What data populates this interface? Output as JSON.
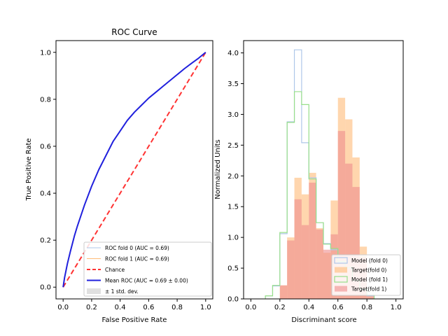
{
  "chart_data": [
    {
      "type": "line",
      "title": "ROC Curve",
      "xlabel": "False Positive Rate",
      "ylabel": "True Positive Rate",
      "xlim": [
        -0.05,
        1.05
      ],
      "ylim": [
        -0.05,
        1.05
      ],
      "xticks": [
        "0.0",
        "0.2",
        "0.4",
        "0.6",
        "0.8",
        "1.0"
      ],
      "yticks": [
        "0.0",
        "0.2",
        "0.4",
        "0.6",
        "0.8",
        "1.0"
      ],
      "grid": false,
      "legend_position": "lower-right",
      "x": [
        0,
        0.01,
        0.03,
        0.05,
        0.08,
        0.1,
        0.15,
        0.2,
        0.25,
        0.3,
        0.35,
        0.4,
        0.45,
        0.5,
        0.55,
        0.6,
        0.65,
        0.7,
        0.75,
        0.8,
        0.85,
        0.9,
        0.95,
        1.0
      ],
      "series": [
        {
          "name": "ROC fold 0 (AUC = 0.69)",
          "style": "solid",
          "color": "#aec7e8",
          "values": [
            0,
            0.04,
            0.1,
            0.15,
            0.22,
            0.26,
            0.35,
            0.43,
            0.5,
            0.56,
            0.62,
            0.665,
            0.71,
            0.745,
            0.775,
            0.805,
            0.83,
            0.855,
            0.88,
            0.905,
            0.93,
            0.953,
            0.975,
            1.0
          ]
        },
        {
          "name": "ROC fold 1 (AUC = 0.69)",
          "style": "solid",
          "color": "#ffbb78",
          "values": [
            0,
            0.04,
            0.1,
            0.15,
            0.22,
            0.26,
            0.35,
            0.43,
            0.5,
            0.56,
            0.62,
            0.665,
            0.71,
            0.745,
            0.775,
            0.805,
            0.83,
            0.855,
            0.88,
            0.905,
            0.93,
            0.953,
            0.975,
            1.0
          ]
        },
        {
          "name": "Chance",
          "style": "dashed",
          "color": "#ff3333",
          "values": [
            0,
            0.01,
            0.03,
            0.05,
            0.08,
            0.1,
            0.15,
            0.2,
            0.25,
            0.3,
            0.35,
            0.4,
            0.45,
            0.5,
            0.55,
            0.6,
            0.65,
            0.7,
            0.75,
            0.8,
            0.85,
            0.9,
            0.95,
            1.0
          ]
        },
        {
          "name": "Mean ROC (AUC = 0.69 ± 0.00)",
          "style": "solid",
          "color": "#2020dd",
          "values": [
            0,
            0.04,
            0.1,
            0.15,
            0.22,
            0.26,
            0.35,
            0.43,
            0.5,
            0.56,
            0.62,
            0.665,
            0.71,
            0.745,
            0.775,
            0.805,
            0.83,
            0.855,
            0.88,
            0.905,
            0.93,
            0.953,
            0.975,
            1.0
          ]
        }
      ],
      "band_label": "± 1 std. dev.",
      "band_color": "#bbbbbb"
    },
    {
      "type": "bar",
      "title": "",
      "xlabel": "Discriminant score",
      "ylabel": "Normalized Units",
      "xlim": [
        -0.05,
        1.05
      ],
      "ylim": [
        0,
        4.2
      ],
      "xticks": [
        "0.0",
        "0.2",
        "0.4",
        "0.6",
        "0.8",
        "1.0"
      ],
      "yticks": [
        "0.0",
        "0.5",
        "1.0",
        "1.5",
        "2.0",
        "2.5",
        "3.0",
        "3.5",
        "4.0"
      ],
      "grid": false,
      "legend_position": "lower-right",
      "bin_edges": [
        0.1,
        0.15,
        0.2,
        0.25,
        0.3,
        0.35,
        0.4,
        0.45,
        0.5,
        0.55,
        0.6,
        0.65,
        0.7,
        0.75,
        0.8,
        0.85
      ],
      "series": [
        {
          "name": "Model (fold 0)",
          "kind": "step",
          "color": "#aec7e8",
          "values": [
            0.05,
            0.21,
            1.06,
            2.88,
            4.05,
            2.54,
            1.97,
            1.24,
            0.9,
            0.8,
            0.6,
            0.5,
            0.3,
            0.15,
            0.05
          ]
        },
        {
          "name": "Target(fold 0)",
          "kind": "filled",
          "color": "#ffbb78",
          "values": [
            0,
            0,
            0.22,
            1.0,
            1.97,
            1.7,
            2.05,
            1.15,
            0.75,
            1.6,
            3.27,
            2.92,
            2.3,
            0.85,
            0.05
          ]
        },
        {
          "name": "Model (fold 1)",
          "kind": "step",
          "color": "#98df8a",
          "values": [
            0.05,
            0.22,
            1.08,
            2.87,
            3.37,
            3.16,
            1.95,
            1.24,
            0.89,
            0.82,
            0.61,
            0.51,
            0.3,
            0.16,
            0.06
          ]
        },
        {
          "name": "Target(fold 1)",
          "kind": "filled",
          "color": "#ef8c8c",
          "values": [
            0,
            0,
            0.22,
            0.95,
            1.62,
            1.2,
            1.89,
            1.13,
            0.8,
            1.05,
            2.73,
            2.2,
            1.82,
            0.67,
            0.05
          ]
        }
      ]
    }
  ]
}
